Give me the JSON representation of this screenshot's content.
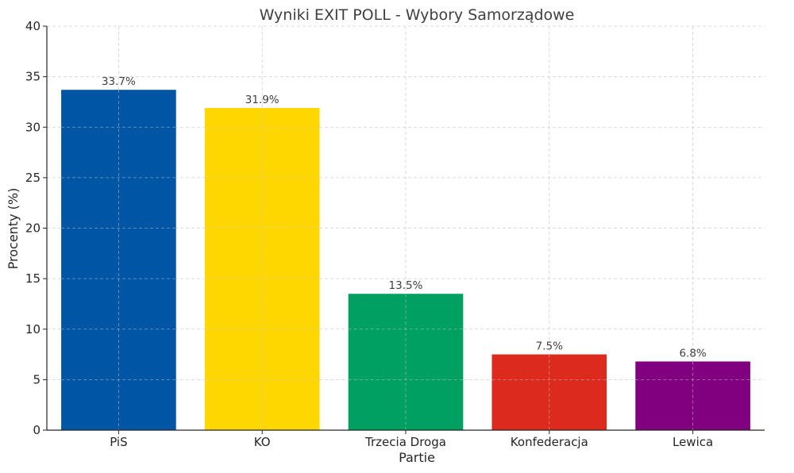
{
  "chart_data": {
    "type": "bar",
    "title": "Wyniki EXIT POLL - Wybory Samorządowe",
    "xlabel": "Partie",
    "ylabel": "Procenty (%)",
    "categories": [
      "PiS",
      "KO",
      "Trzecia Droga",
      "Konfederacja",
      "Lewica"
    ],
    "values": [
      33.7,
      31.9,
      13.5,
      7.5,
      6.8
    ],
    "data_labels": [
      "33.7%",
      "31.9%",
      "13.5%",
      "7.5%",
      "6.8%"
    ],
    "colors": [
      "#0055a5",
      "#ffd700",
      "#00a060",
      "#dc2a1e",
      "#800080"
    ],
    "ylim": [
      0,
      40
    ],
    "yticks": [
      0,
      5,
      10,
      15,
      20,
      25,
      30,
      35,
      40
    ],
    "grid": true,
    "legend": "none"
  }
}
